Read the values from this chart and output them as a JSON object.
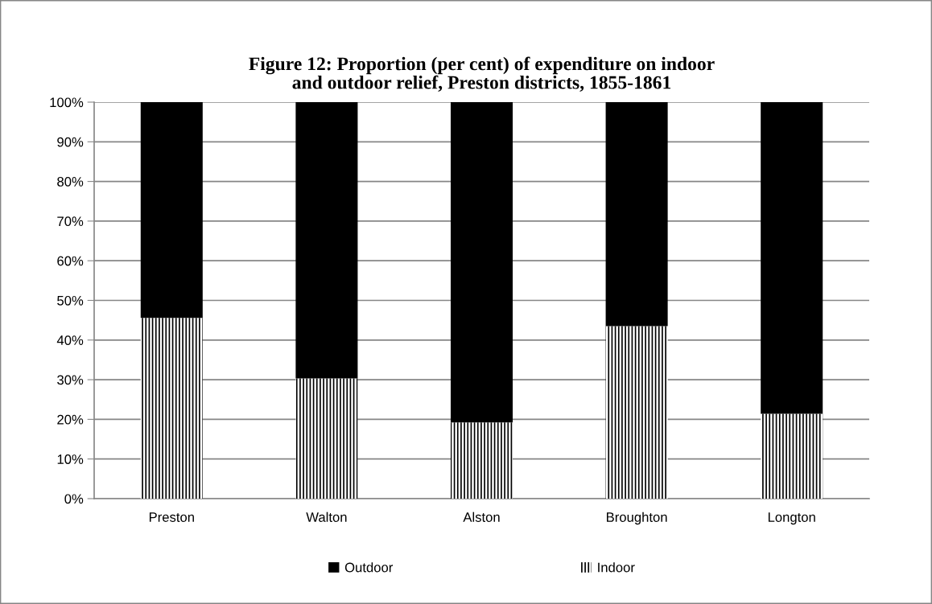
{
  "chart_data": {
    "type": "bar",
    "stacked": true,
    "title": "Figure 12: Proportion (per cent) of expenditure on indoor\nand outdoor relief, Preston districts, 1855-1861",
    "categories": [
      "Preston",
      "Walton",
      "Alston",
      "Broughton",
      "Longton"
    ],
    "series": [
      {
        "name": "Indoor",
        "color": "#ffffff",
        "values": [
          45.6,
          30.3,
          19.2,
          43.5,
          21.4
        ]
      },
      {
        "name": "Outdoor",
        "color": "#000000",
        "values": [
          54.4,
          69.7,
          80.8,
          56.5,
          78.6
        ]
      }
    ],
    "ylim": [
      0,
      100
    ],
    "yticks": [
      {
        "value": 0,
        "label": "0%"
      },
      {
        "value": 10,
        "label": "10%"
      },
      {
        "value": 20,
        "label": "20%"
      },
      {
        "value": 30,
        "label": "30%"
      },
      {
        "value": 40,
        "label": "40%"
      },
      {
        "value": 50,
        "label": "50%"
      },
      {
        "value": 60,
        "label": "60%"
      },
      {
        "value": 70,
        "label": "70%"
      },
      {
        "value": 80,
        "label": "80%"
      },
      {
        "value": 90,
        "label": "90%"
      },
      {
        "value": 100,
        "label": "100%"
      }
    ],
    "grid": "y",
    "legend": "bottom"
  }
}
